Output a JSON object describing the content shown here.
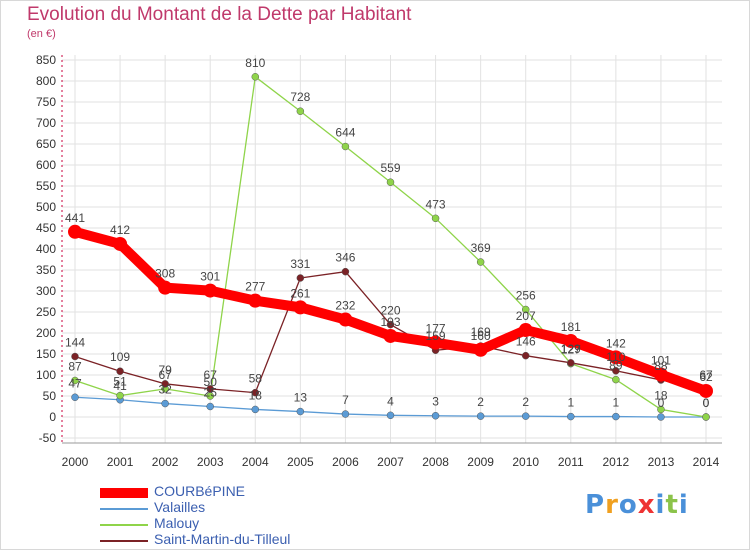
{
  "title": "Evolution du Montant de la Dette par Habitant",
  "subtitle": "(en €)",
  "logo_text": "Proxiti",
  "logo_colors": [
    "#4a90d9",
    "#f0a020",
    "#4a90d9",
    "#e33",
    "#4a90d9",
    "#8bc34a",
    "#4a90d9"
  ],
  "chart_data": {
    "type": "line",
    "x": [
      "2000",
      "2001",
      "2002",
      "2003",
      "2004",
      "2005",
      "2006",
      "2007",
      "2008",
      "2009",
      "2010",
      "2011",
      "2012",
      "2013",
      "2014"
    ],
    "y_ticks": [
      -50,
      0,
      50,
      100,
      150,
      200,
      250,
      300,
      350,
      400,
      450,
      500,
      550,
      600,
      650,
      700,
      750,
      800,
      850
    ],
    "ylim": [
      -50,
      850
    ],
    "grid": true,
    "series": [
      {
        "name": "COURBéPINE",
        "color": "#ff0000",
        "values": [
          441,
          412,
          308,
          301,
          277,
          261,
          232,
          193,
          177,
          160,
          207,
          181,
          142,
          101,
          62
        ]
      },
      {
        "name": "Valailles",
        "color": "#5b9bd5",
        "values": [
          47,
          41,
          32,
          25,
          18,
          13,
          7,
          4,
          3,
          2,
          2,
          1,
          1,
          0,
          0
        ]
      },
      {
        "name": "Malouy",
        "color": "#8fd44a",
        "values": [
          87,
          51,
          67,
          50,
          810,
          728,
          644,
          559,
          473,
          369,
          256,
          127,
          89,
          18,
          0
        ]
      },
      {
        "name": "Saint-Martin-du-Tilleul",
        "color": "#7b2226",
        "values": [
          144,
          109,
          79,
          67,
          58,
          331,
          346,
          220,
          159,
          169,
          146,
          129,
          110,
          88,
          67
        ]
      }
    ]
  }
}
